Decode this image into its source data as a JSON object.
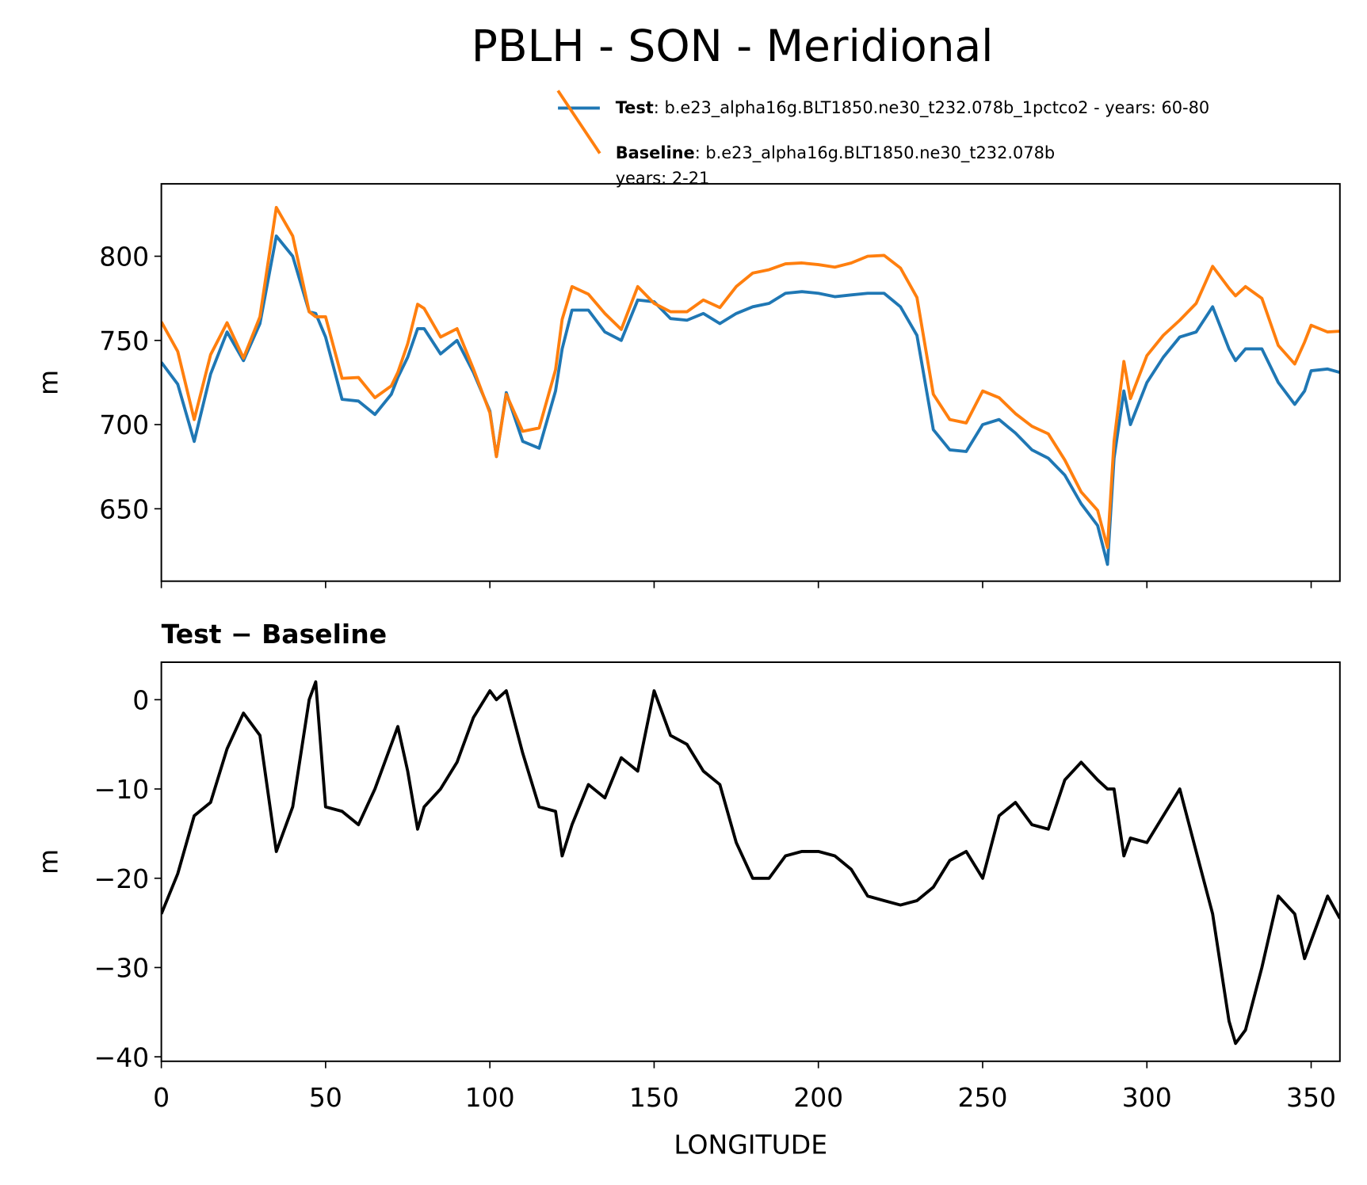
{
  "title": "PBLH - SON - Meridional",
  "chart_data": [
    {
      "type": "line",
      "ylabel": "m",
      "x": [
        0,
        5,
        10,
        15,
        20,
        25,
        30,
        35,
        40,
        45,
        47,
        50,
        55,
        60,
        65,
        70,
        72,
        75,
        78,
        80,
        85,
        90,
        95,
        100,
        102,
        105,
        110,
        115,
        120,
        122,
        125,
        130,
        135,
        140,
        145,
        150,
        155,
        160,
        165,
        170,
        175,
        180,
        185,
        190,
        195,
        200,
        205,
        210,
        215,
        220,
        225,
        230,
        235,
        240,
        245,
        250,
        255,
        260,
        265,
        270,
        275,
        280,
        285,
        288,
        290,
        293,
        295,
        300,
        305,
        310,
        315,
        320,
        325,
        327,
        330,
        335,
        340,
        345,
        348,
        350,
        355,
        358.75
      ],
      "series": [
        {
          "name": "Test",
          "label": ": b.e23_alpha16g.BLT1850.ne30_t232.078b_1pctco2 - years: 60-80",
          "color": "#1f77b4",
          "values": [
            737,
            724,
            690,
            730,
            755,
            738,
            760,
            812,
            800,
            767,
            766,
            752,
            715,
            714,
            706,
            718,
            728,
            740,
            757,
            757,
            742,
            750,
            731,
            708,
            681,
            719,
            690,
            686,
            720,
            745,
            768,
            768,
            755,
            750,
            774,
            773,
            763,
            762,
            766,
            760,
            766,
            770,
            772,
            778,
            779,
            778,
            776,
            777,
            778,
            778,
            770,
            753,
            697,
            685,
            684,
            700,
            703,
            695,
            685,
            680,
            670,
            653,
            640,
            617,
            680,
            720,
            700,
            725,
            740,
            752,
            755,
            770,
            745,
            738,
            745,
            745,
            725,
            712,
            720,
            732,
            733,
            731
          ]
        },
        {
          "name": "Baseline",
          "label": [
            ": b.e23_alpha16g.BLT1850.ne30_t232.078b",
            "years: 2-21"
          ],
          "color": "#ff7f0e",
          "values": [
            761,
            743.5,
            703,
            741.5,
            760.5,
            739.5,
            764,
            829,
            812,
            767,
            764,
            764,
            727.5,
            728,
            716,
            723,
            731,
            748,
            771.5,
            769,
            752,
            757,
            733,
            707,
            681,
            718,
            696,
            698,
            732.5,
            762.5,
            782,
            777.5,
            766,
            756.5,
            782,
            772,
            767,
            767,
            774,
            769.5,
            782,
            790,
            792,
            795.5,
            796,
            795,
            793.5,
            796,
            800,
            800.5,
            793,
            775.5,
            718,
            703,
            701,
            720,
            716,
            706.5,
            699,
            694.5,
            679,
            660,
            649,
            627,
            690,
            737.5,
            715.5,
            741,
            753,
            762,
            772,
            794,
            781,
            776.5,
            782,
            775,
            747,
            736,
            749,
            759,
            755,
            755.5
          ]
        }
      ],
      "xlim": [
        0,
        358.75
      ],
      "xticks": [
        0,
        50,
        100,
        150,
        200,
        250,
        300,
        350
      ],
      "xticklabels": false,
      "ylim": [
        607,
        843
      ],
      "yticks": [
        650,
        700,
        750,
        800
      ]
    },
    {
      "type": "line",
      "title": "Test − Baseline",
      "xlabel": "LONGITUDE",
      "ylabel": "m",
      "color": "#000000",
      "x": [
        0,
        5,
        10,
        15,
        20,
        25,
        30,
        35,
        40,
        45,
        47,
        50,
        55,
        60,
        65,
        70,
        72,
        75,
        78,
        80,
        85,
        90,
        95,
        100,
        102,
        105,
        110,
        115,
        120,
        122,
        125,
        130,
        135,
        140,
        145,
        150,
        155,
        160,
        165,
        170,
        175,
        180,
        185,
        190,
        195,
        200,
        205,
        210,
        215,
        220,
        225,
        230,
        235,
        240,
        245,
        250,
        255,
        260,
        265,
        270,
        275,
        280,
        285,
        288,
        290,
        293,
        295,
        300,
        305,
        310,
        315,
        320,
        325,
        327,
        330,
        335,
        340,
        345,
        348,
        350,
        355,
        358.75
      ],
      "values": [
        -24,
        -19.5,
        -13,
        -11.5,
        -5.5,
        -1.5,
        -4,
        -17,
        -12,
        0,
        2,
        -12,
        -12.5,
        -14,
        -10,
        -5,
        -3,
        -8,
        -14.5,
        -12,
        -10,
        -7,
        -2,
        1,
        0,
        1,
        -6,
        -12,
        -12.5,
        -17.5,
        -14,
        -9.5,
        -11,
        -6.5,
        -8,
        1,
        -4,
        -5,
        -8,
        -9.5,
        -16,
        -20,
        -20,
        -17.5,
        -17,
        -17,
        -17.5,
        -19,
        -22,
        -22.5,
        -23,
        -22.5,
        -21,
        -18,
        -17,
        -20,
        -13,
        -11.5,
        -14,
        -14.5,
        -9,
        -7,
        -9,
        -10,
        -10,
        -17.5,
        -15.5,
        -16,
        -13,
        -10,
        -17,
        -24,
        -36,
        -38.5,
        -37,
        -30,
        -22,
        -24,
        -29,
        -27,
        -22,
        -24.5
      ],
      "xlim": [
        0,
        358.75
      ],
      "xticks": [
        0,
        50,
        100,
        150,
        200,
        250,
        300,
        350
      ],
      "ylim": [
        -40.5,
        4.2
      ],
      "yticks": [
        {
          "value": -40,
          "label": "−40"
        },
        {
          "value": -30,
          "label": "−30"
        },
        {
          "value": -20,
          "label": "−20"
        },
        {
          "value": -10,
          "label": "−10"
        },
        0
      ]
    }
  ]
}
